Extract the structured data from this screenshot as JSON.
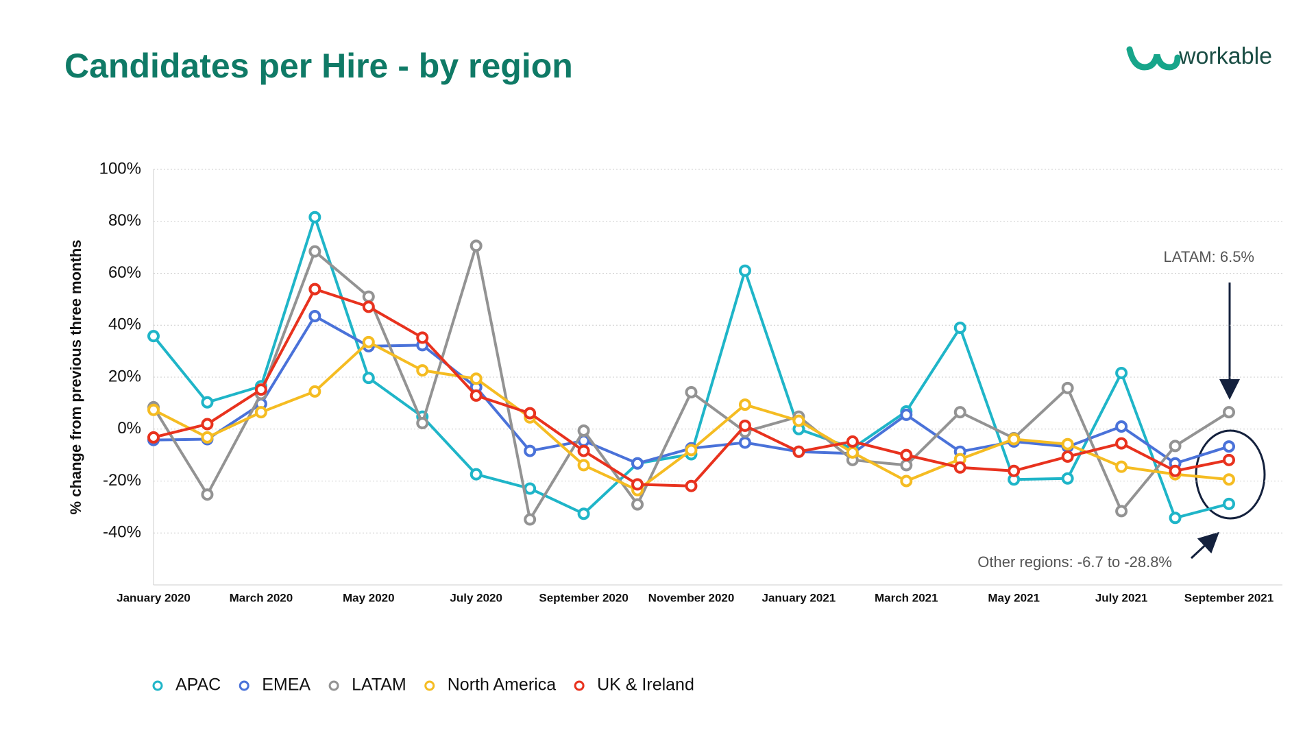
{
  "brand": "workable",
  "chart_data": {
    "type": "line",
    "title": "Candidates per Hire - by region",
    "y_label": "% change from previous three months",
    "categories": [
      "January 2020",
      null,
      "March 2020",
      null,
      "May 2020",
      null,
      "July 2020",
      null,
      "September 2020",
      null,
      "November 2020",
      null,
      "January 2021",
      null,
      "March 2021",
      null,
      "May 2021",
      null,
      "July 2021",
      null,
      "September 2021"
    ],
    "series": [
      {
        "name": "APAC",
        "color": "#1fb5c8",
        "values": [
          35.8,
          10.3,
          16.5,
          81.6,
          19.7,
          4.8,
          -17.4,
          -22.9,
          -32.6,
          -13.2,
          -9.7,
          61,
          0,
          -7.4,
          6.8,
          39,
          -19.4,
          -19,
          21.6,
          -34.2,
          -28.8
        ]
      },
      {
        "name": "EMEA",
        "color": "#4a72d9",
        "values": [
          -4.2,
          -3.9,
          9.7,
          43.5,
          31.9,
          32.3,
          16.1,
          -8.4,
          -4.5,
          -13.2,
          -7.4,
          -5.2,
          -8.7,
          -9.4,
          5.5,
          -8.7,
          -4.8,
          -6.8,
          1,
          -13.2,
          -6.7
        ]
      },
      {
        "name": "LATAM",
        "color": "#939393",
        "values": [
          8.4,
          -25.2,
          13.5,
          68.4,
          51,
          2.3,
          70.6,
          -34.8,
          -0.6,
          -29,
          14.2,
          -1,
          4.8,
          -11.9,
          -13.9,
          6.5,
          -3.5,
          15.8,
          -31.6,
          -6.5,
          6.5
        ]
      },
      {
        "name": "North America",
        "color": "#f5bc22",
        "values": [
          7.4,
          -3.2,
          6.5,
          14.5,
          33.5,
          22.6,
          19.4,
          4.5,
          -13.9,
          -23.5,
          -8.1,
          9.4,
          3.2,
          -9,
          -20,
          -11.6,
          -3.9,
          -5.8,
          -14.5,
          -17.4,
          -19.4
        ]
      },
      {
        "name": "UK & Ireland",
        "color": "#e8321e",
        "values": [
          -3.2,
          1.9,
          15.2,
          53.9,
          47.1,
          35.2,
          12.9,
          6.1,
          -8.4,
          -21.3,
          -21.9,
          1.3,
          -8.7,
          -4.8,
          -10,
          -14.8,
          -16.1,
          -10.6,
          -5.5,
          -16.1,
          -11.9
        ]
      }
    ],
    "ylim": [
      -60,
      100
    ],
    "yticks": [
      {
        "value": -40,
        "label": "-40%"
      },
      {
        "value": -20,
        "label": "-20%"
      },
      {
        "value": 0,
        "label": "0%"
      },
      {
        "value": 20,
        "label": "20%"
      },
      {
        "value": 40,
        "label": "40%"
      },
      {
        "value": 60,
        "label": "60%"
      },
      {
        "value": 80,
        "label": "80%"
      },
      {
        "value": 100,
        "label": "100%"
      }
    ],
    "grid": true,
    "legend": "bottom",
    "annotations": [
      "LATAM: 6.5%",
      "Other regions: -6.7 to -28.8%"
    ]
  }
}
